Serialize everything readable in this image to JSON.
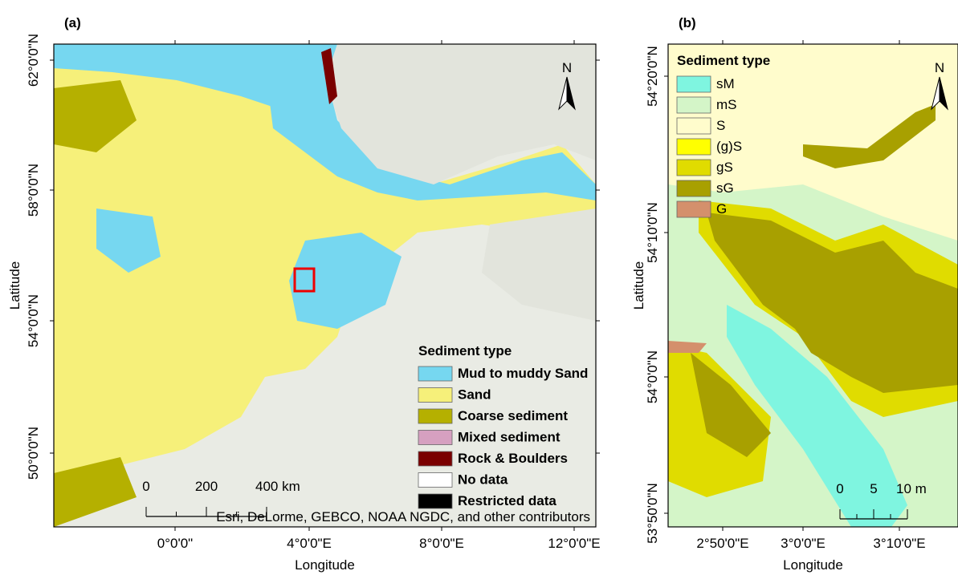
{
  "panel_a": {
    "label": "(a)",
    "x_axis_title": "Longitude",
    "y_axis_title": "Latitude",
    "lat_labels": [
      "62°0'0\"N",
      "58°0'0\"N",
      "54°0'0\"N",
      "50°0'0\"N"
    ],
    "lon_labels": [
      "0°0'0\"",
      "4°0'0\"E",
      "8°0'0\"E",
      "12°0'0\"E"
    ],
    "legend": {
      "title": "Sediment type",
      "items": [
        {
          "label": "Mud to muddy Sand",
          "color": "#76d7f0"
        },
        {
          "label": "Sand",
          "color": "#f6f07a"
        },
        {
          "label": "Coarse sediment",
          "color": "#b5b000"
        },
        {
          "label": "Mixed sediment",
          "color": "#d6a0c0"
        },
        {
          "label": "Rock & Boulders",
          "color": "#7a0000"
        },
        {
          "label": "No data",
          "color": "#ffffff"
        },
        {
          "label": "Restricted data",
          "color": "#000000"
        }
      ]
    },
    "scale_bar": [
      "0",
      "200",
      "400 km"
    ],
    "north": "N",
    "attribution": "Esri, DeLorme, GEBCO, NOAA NGDC, and other contributors"
  },
  "panel_b": {
    "label": "(b)",
    "x_axis_title": "Longitude",
    "y_axis_title": "Latitude",
    "lat_labels": [
      "54°20'0\"N",
      "54°10'0\"N",
      "54°0'0\"N",
      "53°50'0\"N"
    ],
    "lon_labels": [
      "2°50'0\"E",
      "3°0'0\"E",
      "3°10'0\"E"
    ],
    "legend": {
      "title": "Sediment type",
      "items": [
        {
          "label": "sM",
          "color": "#7ff5e0"
        },
        {
          "label": "mS",
          "color": "#d4f5c8"
        },
        {
          "label": "S",
          "color": "#fffccc"
        },
        {
          "label": "(g)S",
          "color": "#ffff00"
        },
        {
          "label": "gS",
          "color": "#e0dc00"
        },
        {
          "label": "sG",
          "color": "#a8a000"
        },
        {
          "label": "G",
          "color": "#d4906c"
        }
      ]
    },
    "scale_bar": [
      "0",
      "5",
      "10 m"
    ],
    "north": "N"
  }
}
